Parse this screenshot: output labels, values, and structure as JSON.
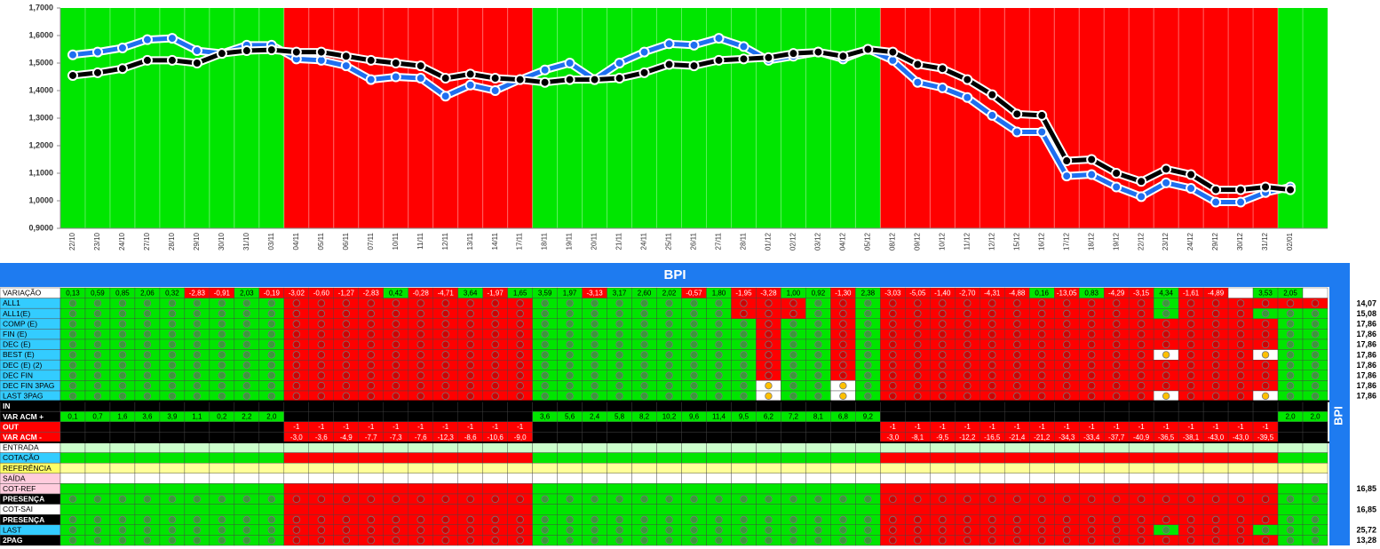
{
  "chart_data": {
    "type": "line",
    "categories": [
      "22/10",
      "23/10",
      "24/10",
      "27/10",
      "28/10",
      "29/10",
      "30/10",
      "31/10",
      "03/11",
      "04/11",
      "05/11",
      "06/11",
      "07/11",
      "10/11",
      "11/11",
      "12/11",
      "13/11",
      "14/11",
      "17/11",
      "18/11",
      "19/11",
      "20/11",
      "21/11",
      "24/11",
      "25/11",
      "26/11",
      "27/11",
      "28/11",
      "01/12",
      "02/12",
      "03/12",
      "04/12",
      "05/12",
      "08/12",
      "09/12",
      "10/12",
      "11/12",
      "12/12",
      "15/12",
      "16/12",
      "17/12",
      "18/12",
      "19/12",
      "22/12",
      "23/12",
      "24/12",
      "29/12",
      "30/12",
      "31/12",
      "02/01",
      null
    ],
    "series": [
      {
        "color": "#1e6ff0",
        "values": [
          1.53,
          1.54,
          1.555,
          1.585,
          1.59,
          1.545,
          1.535,
          1.565,
          1.565,
          1.515,
          1.51,
          1.49,
          1.44,
          1.45,
          1.445,
          1.38,
          1.42,
          1.4,
          1.44,
          1.475,
          1.5,
          1.44,
          1.5,
          1.54,
          1.57,
          1.565,
          1.59,
          1.56,
          1.51,
          1.525,
          1.54,
          1.515,
          1.55,
          1.51,
          1.43,
          1.41,
          1.375,
          1.31,
          1.25,
          1.25,
          1.09,
          1.095,
          1.05,
          1.015,
          1.065,
          1.045,
          0.995,
          0.995,
          1.03,
          1.05,
          null
        ]
      },
      {
        "color": "#000000",
        "values": [
          1.455,
          1.465,
          1.48,
          1.51,
          1.51,
          1.5,
          1.535,
          1.545,
          1.548,
          1.54,
          1.54,
          1.525,
          1.51,
          1.5,
          1.49,
          1.445,
          1.46,
          1.445,
          1.44,
          1.43,
          1.44,
          1.44,
          1.445,
          1.465,
          1.495,
          1.49,
          1.51,
          1.515,
          1.52,
          1.535,
          1.54,
          1.525,
          1.55,
          1.54,
          1.495,
          1.48,
          1.44,
          1.385,
          1.315,
          1.31,
          1.145,
          1.15,
          1.1,
          1.07,
          1.115,
          1.095,
          1.04,
          1.04,
          1.05,
          1.04,
          null
        ]
      }
    ],
    "ylim": [
      0.9,
      1.7
    ],
    "yticks": [
      {
        "value": 0.9,
        "label": "0,9000"
      },
      {
        "value": 1.0,
        "label": "1,0000"
      },
      {
        "value": 1.1,
        "label": "1,1000"
      },
      {
        "value": 1.2,
        "label": "1,2000"
      },
      {
        "value": 1.3,
        "label": "1,3000"
      },
      {
        "value": 1.4,
        "label": "1,4000"
      },
      {
        "value": 1.5,
        "label": "1,5000"
      },
      {
        "value": 1.6,
        "label": "1,6000"
      },
      {
        "value": 1.7,
        "label": "1,7000"
      }
    ],
    "bands": "GGGGGGGGGRRRRRRRRRRGGGGGGGGGGGGGGRRRRRRRRRRRRRRRRGG",
    "band_colors": {
      "G": "#00e600",
      "R": "#ff0000"
    }
  },
  "table": {
    "title": "BPI",
    "side_label": "BPI",
    "palette": {
      "G": "#00e600",
      "R": "#ff0000",
      "Y": "#ffffff",
      "K": "#000000",
      "L": "#ccffcc",
      "P": "#ffff99",
      "W": "#ffffff",
      "C": "#33ccff"
    },
    "marker_colors": {
      "G": "#3a9a3a",
      "R": "#d00000",
      "Y": "#ffc000"
    },
    "rows": [
      {
        "label": "VARIAÇÃO",
        "label_color": "#ffffff",
        "signed": true,
        "values": [
          "0,13",
          "0,59",
          "0,85",
          "2,06",
          "0,32",
          "-2,83",
          "-0,91",
          "2,03",
          "-0,19",
          "-3,02",
          "-0,60",
          "-1,27",
          "-2,83",
          "0,42",
          "-0,28",
          "-4,71",
          "3,64",
          "-1,97",
          "1,65",
          "3,59",
          "1,97",
          "-3,13",
          "3,17",
          "2,60",
          "2,02",
          "-0,57",
          "1,80",
          "-1,95",
          "-3,28",
          "1,00",
          "0,92",
          "-1,30",
          "2,38",
          "-3,03",
          "-5,05",
          "-1,40",
          "-2,70",
          "-4,31",
          "-4,88",
          "0,16",
          "-13,05",
          "0,83",
          "-4,29",
          "-3,15",
          "4,34",
          "-1,61",
          "-4,89",
          null,
          "3,53",
          "2,05",
          null
        ]
      },
      {
        "label": "ALL1",
        "label_color": "#33ccff",
        "circles": true,
        "cells": "GGGGGGGGGRRRRRRRRRRGGGGGGGGRRRGRGRRRRRRRRRRRGRRRRRR",
        "total": "14,07"
      },
      {
        "label": "ALL1(E)",
        "label_color": "#33ccff",
        "circles": true,
        "cells": "GGGGGGGGGRRRRRRRRRRGGGGGGGGRRRGRGRRRRRRRRRRRGRRRGGG",
        "total": "15,08"
      },
      {
        "label": "COMP (E)",
        "label_color": "#33ccff",
        "circles": true,
        "cells": "GGGGGGGGGRRRRRRRRRRGGGGGGGGGRGGRGRRRRRRRRRRRRRRRRGG",
        "total": "17,86"
      },
      {
        "label": "FIN (E)",
        "label_color": "#33ccff",
        "circles": true,
        "cells": "GGGGGGGGGRRRRRRRRRRGGGGGGGGGRGGRGRRRRRRRRRRRRRRRRGG",
        "total": "17,86"
      },
      {
        "label": "DEC (E)",
        "label_color": "#33ccff",
        "circles": true,
        "cells": "GGGGGGGGGRRRRRRRRRRGGGGGGGGGRGGRGRRRRRRRRRRRRRRRRGG",
        "total": "17,86"
      },
      {
        "label": "BEST (E)",
        "label_color": "#33ccff",
        "circles": true,
        "cells": "GGGGGGGGGRRRRRRRRRRGGGGGGGGGRGGRGRRRRRRRRRRRYRRRYGG",
        "total": "17,86"
      },
      {
        "label": "DEC (E) (2)",
        "label_color": "#33ccff",
        "circles": true,
        "cells": "GGGGGGGGGRRRRRRRRRRGGGGGGGGGRGGRGRRRRRRRRRRRRRRRRGG",
        "total": "17,86"
      },
      {
        "label": "DEC FIN",
        "label_color": "#33ccff",
        "circles": true,
        "cells": "GGGGGGGGGRRRRRRRRRRGGGGGGGGGRGGRGRRRRRRRRRRRRRRRRGG",
        "total": "17,86"
      },
      {
        "label": "DEC FIN 3PAG",
        "label_color": "#33ccff",
        "circles": true,
        "cells": "GGGGGGGGGRRRRRRRRRRGGGGGGGGGYGGYGRRRRRRRRRRRRRRRRGG",
        "total": "17,86"
      },
      {
        "label": "LAST 3PAG",
        "label_color": "#33ccff",
        "circles": true,
        "cells": "GGGGGGGGGRRRRRRRRRRGGGGGGGGGYGGYGRRRRRRRRRRRYRRRYGG",
        "total": "17,86"
      },
      {
        "label": "IN",
        "label_color": "#000000",
        "cells": "KKKKKKKKKKKKKKKKKKKKKKKKKKKKKKKKKKKKKKKKKKKKKKKKKKK"
      },
      {
        "label": "VAR ACM +",
        "label_color": "#000000",
        "cells": "GGGGGGGGGKKKKKKKKKKGGGGGGGGGGGGGGKKKKKKKKKKKKKKKKGG",
        "values": [
          "0,1",
          "0,7",
          "1,6",
          "3,6",
          "3,9",
          "1,1",
          "0,2",
          "2,2",
          "2,0",
          null,
          null,
          null,
          null,
          null,
          null,
          null,
          null,
          null,
          null,
          "3,6",
          "5,6",
          "2,4",
          "5,8",
          "8,2",
          "10,2",
          "9,6",
          "11,4",
          "9,5",
          "6,2",
          "7,2",
          "8,1",
          "6,8",
          "9,2",
          null,
          null,
          null,
          null,
          null,
          null,
          null,
          null,
          null,
          null,
          null,
          null,
          null,
          null,
          null,
          null,
          "2,0",
          "2,0"
        ]
      },
      {
        "label": "OUT",
        "label_color": "#ff0000",
        "cells": "KKKKKKKKKRRRRRRRRRRKKKKKKKKKKKKKKRRRRRRRRRRRRRRRRKK",
        "values": [
          null,
          null,
          null,
          null,
          null,
          null,
          null,
          null,
          null,
          "-1",
          "-1",
          "-1",
          "-1",
          "-1",
          "-1",
          "-1",
          "-1",
          "-1",
          "-1",
          null,
          null,
          null,
          null,
          null,
          null,
          null,
          null,
          null,
          null,
          null,
          null,
          null,
          null,
          "-1",
          "-1",
          "-1",
          "-1",
          "-1",
          "-1",
          "-1",
          "-1",
          "-1",
          "-1",
          "-1",
          "-1",
          "-1",
          "-1",
          "-1",
          "-1",
          null,
          null
        ]
      },
      {
        "label": "VAR ACM -",
        "label_color": "#ff0000",
        "cells": "KKKKKKKKKRRRRRRRRRRKKKKKKKKKKKKKKRRRRRRRRRRRRRRRRKK",
        "values": [
          null,
          null,
          null,
          null,
          null,
          null,
          null,
          null,
          null,
          "-3,0",
          "-3,6",
          "-4,9",
          "-7,7",
          "-7,3",
          "-7,6",
          "-12,3",
          "-8,6",
          "-10,6",
          "-9,0",
          null,
          null,
          null,
          null,
          null,
          null,
          null,
          null,
          null,
          null,
          null,
          null,
          null,
          null,
          "-3,0",
          "-8,1",
          "-9,5",
          "-12,2",
          "-16,5",
          "-21,4",
          "-21,2",
          "-34,3",
          "-33,4",
          "-37,7",
          "-40,9",
          "-36,5",
          "-38,1",
          "-43,0",
          "-43,0",
          "-39,5",
          null,
          null
        ]
      },
      {
        "label": "ENTRADA",
        "label_color": "#ffffff",
        "cells": "LLLLLLLLLLLLLLLLLLLLLLLLLLLLLLLLLLLLLLLLLLLLLLLLLLL"
      },
      {
        "label": "COTAÇÃO",
        "label_color": "#33ccff",
        "cells": "GGGGGGGGGRRRRRRRRRRGGGGGGGGGGGGGGRRRRRRRRRRRRRRRRGG"
      },
      {
        "label": "REFERÊNCIA",
        "label_color": "#ffff66",
        "cells": "PPPPPPPPPPPPPPPPPPPPPPPPPPPPPPPPPPPPPPPPPPPPPPPPPPP"
      },
      {
        "label": "SAÍDA",
        "label_color": "#ffccdd",
        "cells": "WWWWWWWWWWWWWWWWWWWWWWWWWWWWWWWWWWWWWWWWWWWWWWWWWWW"
      },
      {
        "label": "COT-REF",
        "label_color": "#ffccdd",
        "cells": "GGGGGGGGGRRRRRRRRRRGGGGGGGGGGGGGGRRRRRRRRRRRRRRRRGG",
        "total": "16,85"
      },
      {
        "label": "PRESENÇA",
        "label_color": "#000000",
        "circles": true,
        "cells": "GGGGGGGGGRRRRRRRRRRGGGGGGGGGGGGGGRRRRRRRRRRRRRRRRGG"
      },
      {
        "label": "COT-SAI",
        "label_color": "#ffffff",
        "cells": "GGGGGGGGGRRRRRRRRRRGGGGGGGGGGGGGGRRRRRRRRRRRRRRRRGG",
        "total": "16,85"
      },
      {
        "label": "PRESENÇA",
        "label_color": "#000000",
        "circles": true,
        "cells": "GGGGGGGGGRRRRRRRRRRGGGGGGGGGGGGGGRRRRRRRRRRRRRRRRGG"
      },
      {
        "label": "LAST",
        "label_color": "#33ccff",
        "circles": true,
        "cells": "GGGGGGGGGRRRRRRRRRRGGGGGGGGGGGGGGRRRRRRRRRRRGRRRGGG",
        "total": "25,72"
      },
      {
        "label": "2PAG",
        "label_color": "#000000",
        "circles": true,
        "cells": "GGGGGGGGGRRRRRRRRRRGGGGGGGGGGGGGGRRRRRRRRRRRRRRRRGG",
        "total": "13,28"
      }
    ]
  }
}
